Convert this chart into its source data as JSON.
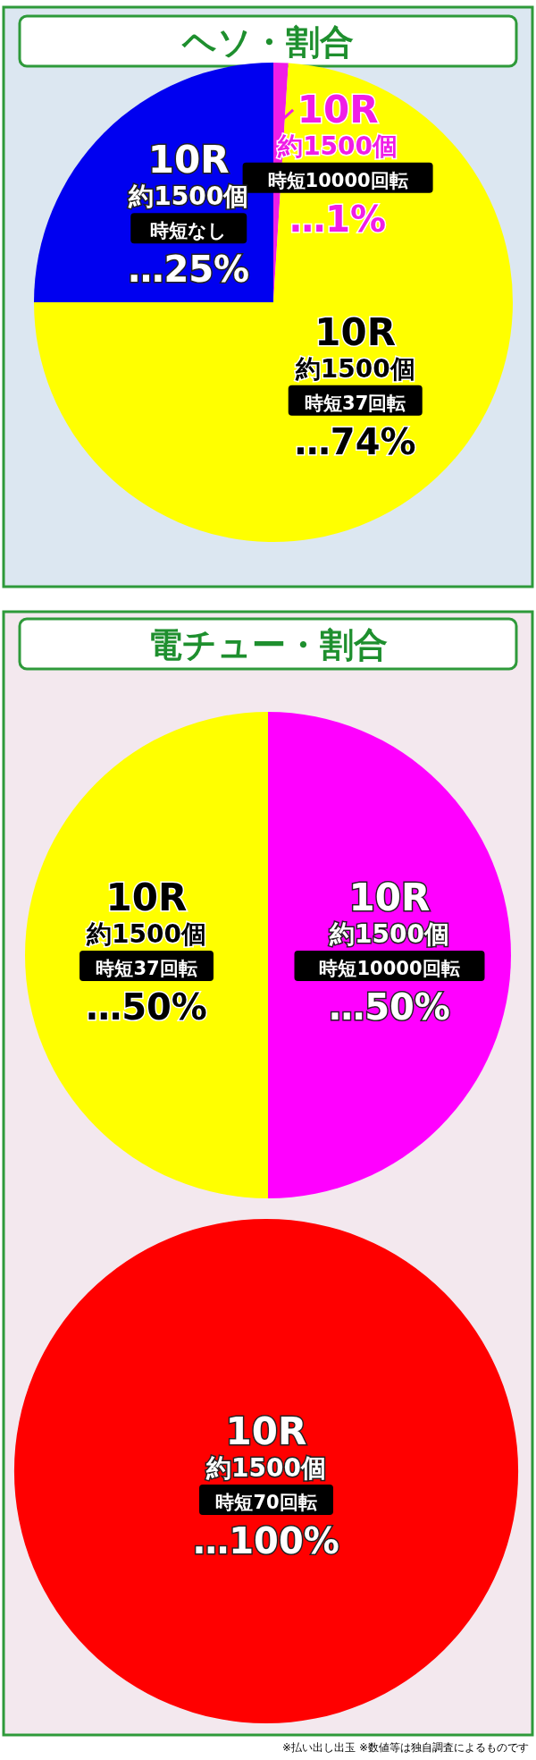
{
  "chart_data": [
    {
      "type": "pie",
      "title": "ヘソ・割合",
      "categories": [
        "10R約1500個時短10000回転",
        "10R約1500個時短37回転",
        "10R約1500個時短なし"
      ],
      "values": [
        1,
        74,
        25
      ],
      "colors": [
        "#f01ee6",
        "#ffff00",
        "#0000f0"
      ],
      "value_labels": [
        "…1%",
        "…74%",
        "…25%"
      ]
    },
    {
      "type": "pie",
      "title": "電チュー・割合",
      "categories": [
        "10R約1500個時短10000回転",
        "10R約1500個時短37回転"
      ],
      "values": [
        50,
        50
      ],
      "colors": [
        "#ff00ff",
        "#ffff00"
      ],
      "value_labels": [
        "…50%",
        "…50%"
      ]
    },
    {
      "type": "pie",
      "categories": [
        "10R約1500個時短70回転"
      ],
      "values": [
        100
      ],
      "colors": [
        "#ff0000"
      ],
      "value_labels": [
        "…100%"
      ],
      "annotations": [
        "※払い出し出玉 ※数値等は独自調査によるものです"
      ]
    }
  ]
}
